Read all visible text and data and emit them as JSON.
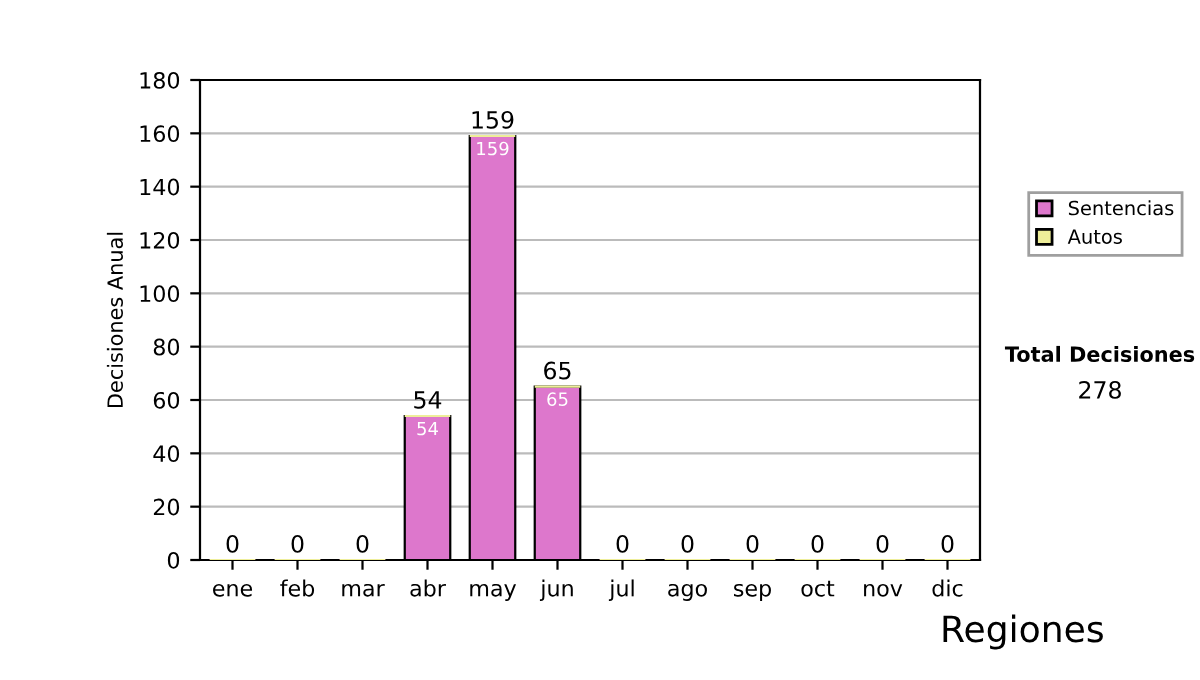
{
  "chart_data": {
    "type": "bar",
    "ylabel": "Decisiones Anual",
    "categories": [
      "ene",
      "feb",
      "mar",
      "abr",
      "may",
      "jun",
      "jul",
      "ago",
      "sep",
      "oct",
      "nov",
      "dic"
    ],
    "stacked": true,
    "series": [
      {
        "name": "Sentencias",
        "color": "#dd77cc",
        "values": [
          0,
          0,
          0,
          54,
          159,
          65,
          0,
          0,
          0,
          0,
          0,
          0
        ],
        "value_labels": [
          null,
          null,
          null,
          "54",
          "159",
          "65",
          null,
          null,
          null,
          null,
          null,
          null
        ]
      },
      {
        "name": "Autos",
        "color": "#eeee99",
        "values": [
          0,
          0,
          0,
          0,
          0,
          0,
          0,
          0,
          0,
          0,
          0,
          0
        ]
      }
    ],
    "totals": [
      "0",
      "0",
      "0",
      "54",
      "159",
      "65",
      "0",
      "0",
      "0",
      "0",
      "0",
      "0"
    ],
    "ylim": [
      0,
      180
    ],
    "yticks": [
      0,
      20,
      40,
      60,
      80,
      100,
      120,
      140,
      160,
      180
    ],
    "grid": "y",
    "legend": "right",
    "annotations": [
      "Total Decisiones",
      "278",
      "Regiones"
    ]
  }
}
